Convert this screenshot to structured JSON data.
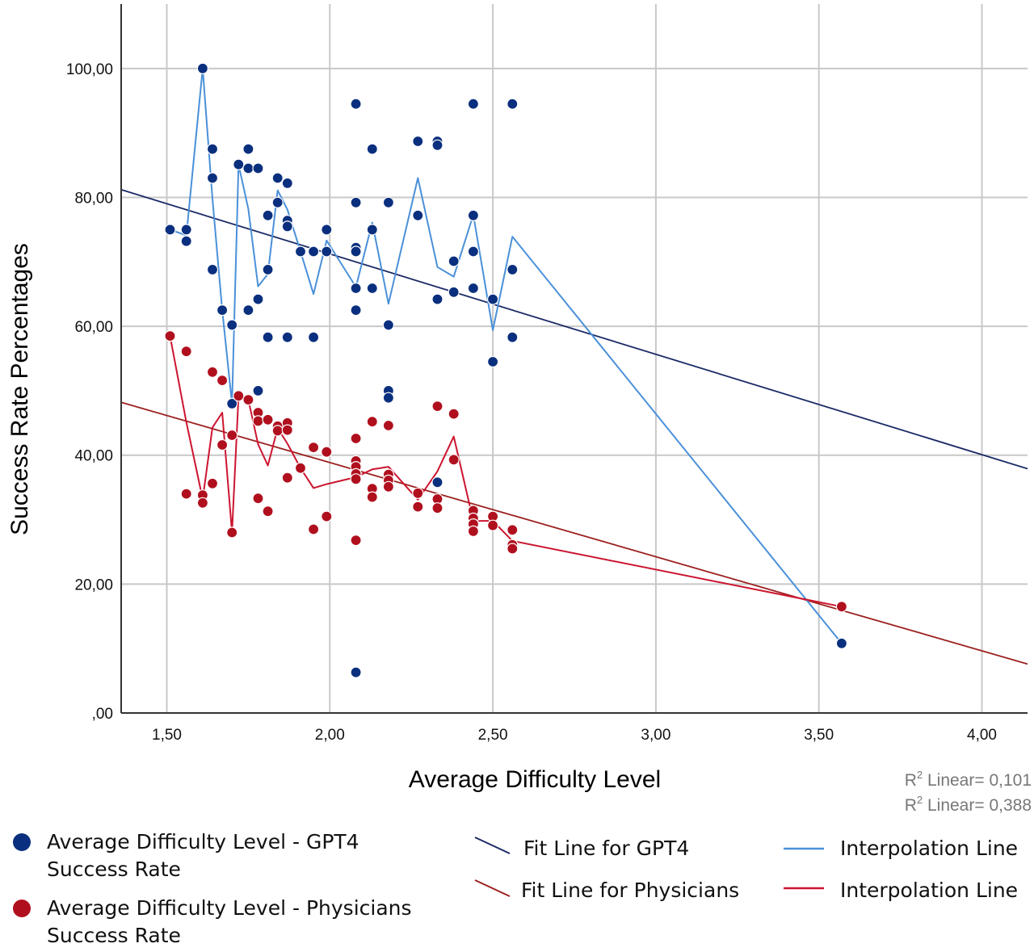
{
  "chart_data": {
    "type": "scatter",
    "xlabel": "Average Difficulty Level",
    "ylabel": "Success Rate Percentages",
    "xlim": [
      1.36,
      4.14
    ],
    "ylim": [
      0,
      110
    ],
    "x_ticks": [
      1.5,
      2.0,
      2.5,
      3.0,
      3.5,
      4.0
    ],
    "x_tick_labels": [
      "1,50",
      "2,00",
      "2,50",
      "3,00",
      "3,50",
      "4,00"
    ],
    "y_ticks": [
      0,
      20,
      40,
      60,
      80,
      100
    ],
    "y_tick_labels": [
      ",00",
      "20,00",
      "40,00",
      "60,00",
      "80,00",
      "100,00"
    ],
    "grid": true,
    "legend_position": "bottom",
    "r2_labels": [
      {
        "prefix": "R",
        "sup": "2",
        "text": " Linear= 0,101"
      },
      {
        "prefix": "R",
        "sup": "2",
        "text": " Linear= 0,388"
      }
    ],
    "series": [
      {
        "name": "Average Difficulty Level - GPT4 Success Rate",
        "legend_lines": [
          "Average Difficulty Level - GPT4",
          "Success Rate"
        ],
        "color": "#0a2f7e",
        "points": [
          [
            1.51,
            75
          ],
          [
            1.56,
            75
          ],
          [
            1.56,
            73.2
          ],
          [
            1.61,
            100
          ],
          [
            1.64,
            87.5
          ],
          [
            1.64,
            83
          ],
          [
            1.64,
            68.8
          ],
          [
            1.67,
            62.5
          ],
          [
            1.7,
            60.2
          ],
          [
            1.7,
            48
          ],
          [
            1.72,
            85.1
          ],
          [
            1.75,
            87.5
          ],
          [
            1.75,
            84.5
          ],
          [
            1.75,
            62.5
          ],
          [
            1.78,
            84.5
          ],
          [
            1.78,
            64.2
          ],
          [
            1.78,
            50
          ],
          [
            1.81,
            77.2
          ],
          [
            1.81,
            68.8
          ],
          [
            1.81,
            58.3
          ],
          [
            1.84,
            83
          ],
          [
            1.84,
            79.2
          ],
          [
            1.87,
            82.2
          ],
          [
            1.87,
            76.4
          ],
          [
            1.87,
            75.5
          ],
          [
            1.87,
            58.3
          ],
          [
            1.91,
            71.6
          ],
          [
            1.95,
            71.6
          ],
          [
            1.95,
            58.3
          ],
          [
            1.99,
            75
          ],
          [
            1.99,
            71.6
          ],
          [
            2.08,
            94.5
          ],
          [
            2.08,
            79.2
          ],
          [
            2.08,
            72.2
          ],
          [
            2.08,
            71.6
          ],
          [
            2.08,
            65.9
          ],
          [
            2.08,
            62.5
          ],
          [
            2.08,
            6.3
          ],
          [
            2.13,
            87.5
          ],
          [
            2.13,
            75
          ],
          [
            2.13,
            65.9
          ],
          [
            2.18,
            79.2
          ],
          [
            2.18,
            60.2
          ],
          [
            2.18,
            50
          ],
          [
            2.18,
            48.9
          ],
          [
            2.27,
            88.7
          ],
          [
            2.27,
            77.2
          ],
          [
            2.33,
            88.7
          ],
          [
            2.33,
            88.1
          ],
          [
            2.33,
            64.2
          ],
          [
            2.33,
            35.8
          ],
          [
            2.38,
            70.1
          ],
          [
            2.38,
            65.3
          ],
          [
            2.44,
            94.5
          ],
          [
            2.44,
            77.2
          ],
          [
            2.44,
            71.6
          ],
          [
            2.44,
            65.9
          ],
          [
            2.5,
            64.2
          ],
          [
            2.5,
            54.5
          ],
          [
            2.56,
            94.5
          ],
          [
            2.56,
            68.8
          ],
          [
            2.56,
            58.3
          ],
          [
            3.57,
            10.8
          ]
        ],
        "fit": [
          [
            1.36,
            81.2
          ],
          [
            4.14,
            37.9
          ]
        ],
        "fit_name": "Fit Line for GPT4",
        "fit_color": "#1b2a66",
        "interp_name": "Interpolation Line",
        "interp_color": "#4a90d9",
        "interp": [
          [
            1.51,
            75
          ],
          [
            1.56,
            74.1
          ],
          [
            1.61,
            100
          ],
          [
            1.64,
            79.8
          ],
          [
            1.67,
            62.5
          ],
          [
            1.7,
            48
          ],
          [
            1.72,
            85.1
          ],
          [
            1.75,
            78.2
          ],
          [
            1.78,
            66.2
          ],
          [
            1.81,
            68.1
          ],
          [
            1.84,
            81.1
          ],
          [
            1.87,
            78.1
          ],
          [
            1.91,
            71.6
          ],
          [
            1.95,
            65
          ],
          [
            1.99,
            73.3
          ],
          [
            2.08,
            66.1
          ],
          [
            2.13,
            76.1
          ],
          [
            2.18,
            63.5
          ],
          [
            2.27,
            83
          ],
          [
            2.33,
            69.2
          ],
          [
            2.38,
            67.7
          ],
          [
            2.44,
            77.3
          ],
          [
            2.5,
            59.4
          ],
          [
            2.56,
            73.9
          ],
          [
            3.57,
            10.8
          ]
        ]
      },
      {
        "name": "Average Difficulty Level - Physicians Success Rate",
        "legend_lines": [
          "Average Difficulty Level - Physicians",
          "Success Rate"
        ],
        "color": "#b0101e",
        "points": [
          [
            1.51,
            58.5
          ],
          [
            1.56,
            56.1
          ],
          [
            1.56,
            34
          ],
          [
            1.61,
            33.8
          ],
          [
            1.61,
            32.6
          ],
          [
            1.64,
            52.9
          ],
          [
            1.64,
            35.6
          ],
          [
            1.67,
            51.6
          ],
          [
            1.67,
            41.6
          ],
          [
            1.7,
            43.1
          ],
          [
            1.7,
            28
          ],
          [
            1.72,
            49.2
          ],
          [
            1.75,
            48.6
          ],
          [
            1.78,
            46.6
          ],
          [
            1.78,
            45.3
          ],
          [
            1.78,
            33.3
          ],
          [
            1.81,
            45.5
          ],
          [
            1.81,
            31.3
          ],
          [
            1.84,
            44.5
          ],
          [
            1.84,
            43.8
          ],
          [
            1.87,
            45
          ],
          [
            1.87,
            43.9
          ],
          [
            1.87,
            36.5
          ],
          [
            1.91,
            38
          ],
          [
            1.95,
            41.2
          ],
          [
            1.95,
            28.5
          ],
          [
            1.99,
            40.5
          ],
          [
            1.99,
            30.5
          ],
          [
            2.08,
            42.6
          ],
          [
            2.08,
            39.1
          ],
          [
            2.08,
            38.2
          ],
          [
            2.08,
            37.1
          ],
          [
            2.08,
            36.3
          ],
          [
            2.08,
            26.8
          ],
          [
            2.13,
            45.2
          ],
          [
            2.13,
            34.8
          ],
          [
            2.13,
            33.5
          ],
          [
            2.18,
            44.6
          ],
          [
            2.18,
            37
          ],
          [
            2.18,
            36.1
          ],
          [
            2.18,
            35.1
          ],
          [
            2.27,
            34.1
          ],
          [
            2.27,
            32
          ],
          [
            2.33,
            47.6
          ],
          [
            2.33,
            33.2
          ],
          [
            2.33,
            31.8
          ],
          [
            2.38,
            46.4
          ],
          [
            2.38,
            39.3
          ],
          [
            2.44,
            31.4
          ],
          [
            2.44,
            30.2
          ],
          [
            2.44,
            29.3
          ],
          [
            2.44,
            28.2
          ],
          [
            2.5,
            30.5
          ],
          [
            2.5,
            29.1
          ],
          [
            2.56,
            28.4
          ],
          [
            2.56,
            26.1
          ],
          [
            2.56,
            25.5
          ],
          [
            3.57,
            16.5
          ]
        ],
        "fit": [
          [
            1.36,
            48.2
          ],
          [
            4.14,
            7.6
          ]
        ],
        "fit_name": "Fit Line for Physicians",
        "fit_color": "#9c2020",
        "interp_name": "Interpolation Line",
        "interp_color": "#cc1530",
        "interp": [
          [
            1.51,
            58.5
          ],
          [
            1.56,
            45.1
          ],
          [
            1.61,
            33.2
          ],
          [
            1.64,
            44.3
          ],
          [
            1.67,
            46.6
          ],
          [
            1.7,
            28
          ],
          [
            1.72,
            49.2
          ],
          [
            1.75,
            48.6
          ],
          [
            1.78,
            41.7
          ],
          [
            1.81,
            38.4
          ],
          [
            1.84,
            44.2
          ],
          [
            1.87,
            41.8
          ],
          [
            1.91,
            38
          ],
          [
            1.95,
            34.9
          ],
          [
            1.99,
            35.5
          ],
          [
            2.08,
            36.6
          ],
          [
            2.13,
            37.8
          ],
          [
            2.18,
            38.2
          ],
          [
            2.27,
            33.1
          ],
          [
            2.33,
            37.5
          ],
          [
            2.38,
            42.9
          ],
          [
            2.44,
            29.8
          ],
          [
            2.5,
            29.8
          ],
          [
            2.56,
            26.7
          ],
          [
            3.57,
            16.5
          ]
        ]
      }
    ]
  }
}
